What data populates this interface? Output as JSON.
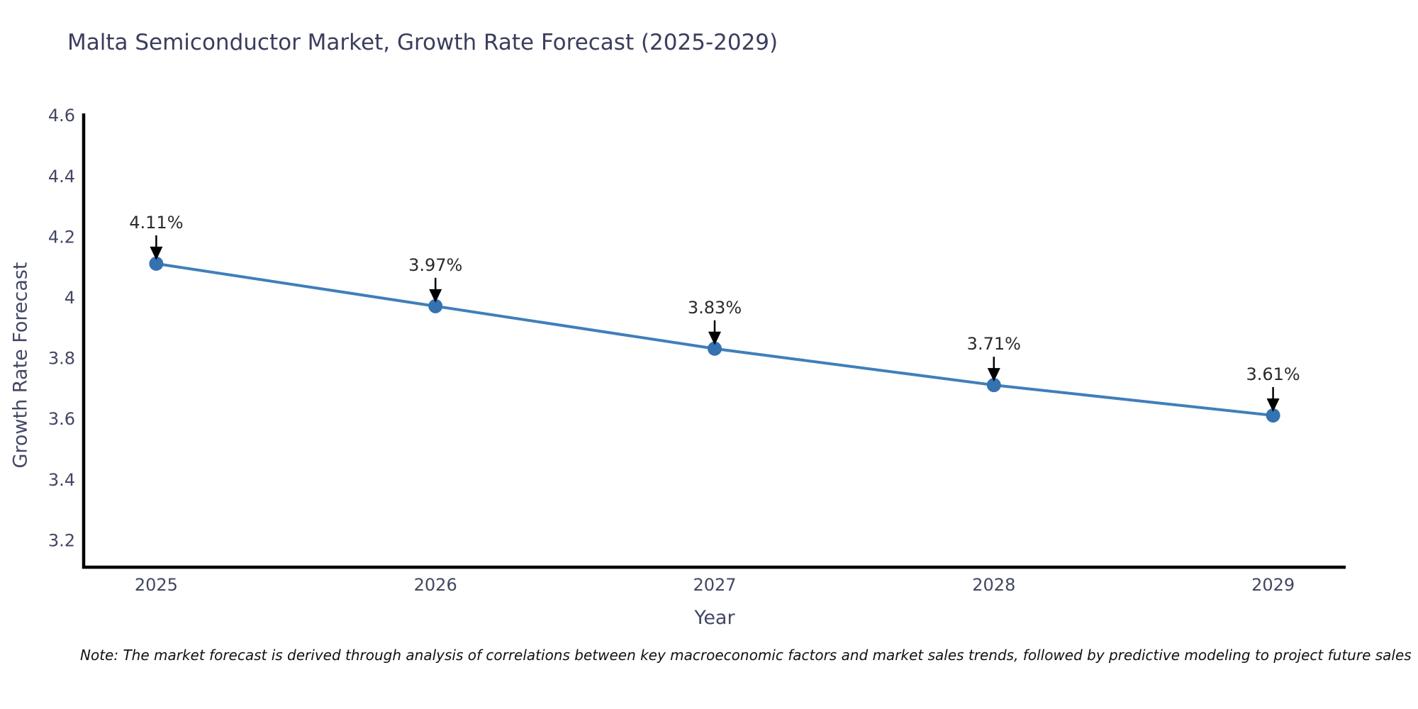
{
  "title": "Malta Semiconductor Market, Growth Rate Forecast (2025-2029)",
  "note": "Note: The market forecast is derived through analysis of correlations between key macroeconomic factors and market sales trends, followed by predictive modeling to project future sales",
  "colors": {
    "title_text": "#3a3e5c",
    "axis_text": "#434763",
    "spine": "#000000",
    "line": "#3f7fba",
    "marker": "#3572b0",
    "annotation_text": "#2a2a2a",
    "arrow": "#000000",
    "background": "#ffffff"
  },
  "chart_data": {
    "type": "line",
    "title": "Malta Semiconductor Market, Growth Rate Forecast (2025-2029)",
    "xlabel": "Year",
    "ylabel": "Growth Rate Forecast",
    "x": [
      2025,
      2026,
      2027,
      2028,
      2029
    ],
    "series": [
      {
        "name": "Growth Rate Forecast",
        "values": [
          4.11,
          3.97,
          3.83,
          3.71,
          3.61
        ]
      }
    ],
    "point_labels": [
      "4.11%",
      "3.97%",
      "3.83%",
      "3.71%",
      "3.61%"
    ],
    "xticks": [
      2025,
      2026,
      2027,
      2028,
      2029
    ],
    "yticks": [
      3.2,
      3.4,
      3.6,
      3.8,
      4,
      4.2,
      4.4,
      4.6
    ],
    "xlim": [
      2024.74,
      2029.26
    ],
    "ylim": [
      3.11,
      4.605
    ],
    "grid": false,
    "legend": "none",
    "annotations": "value labels with downward arrows above each point"
  }
}
